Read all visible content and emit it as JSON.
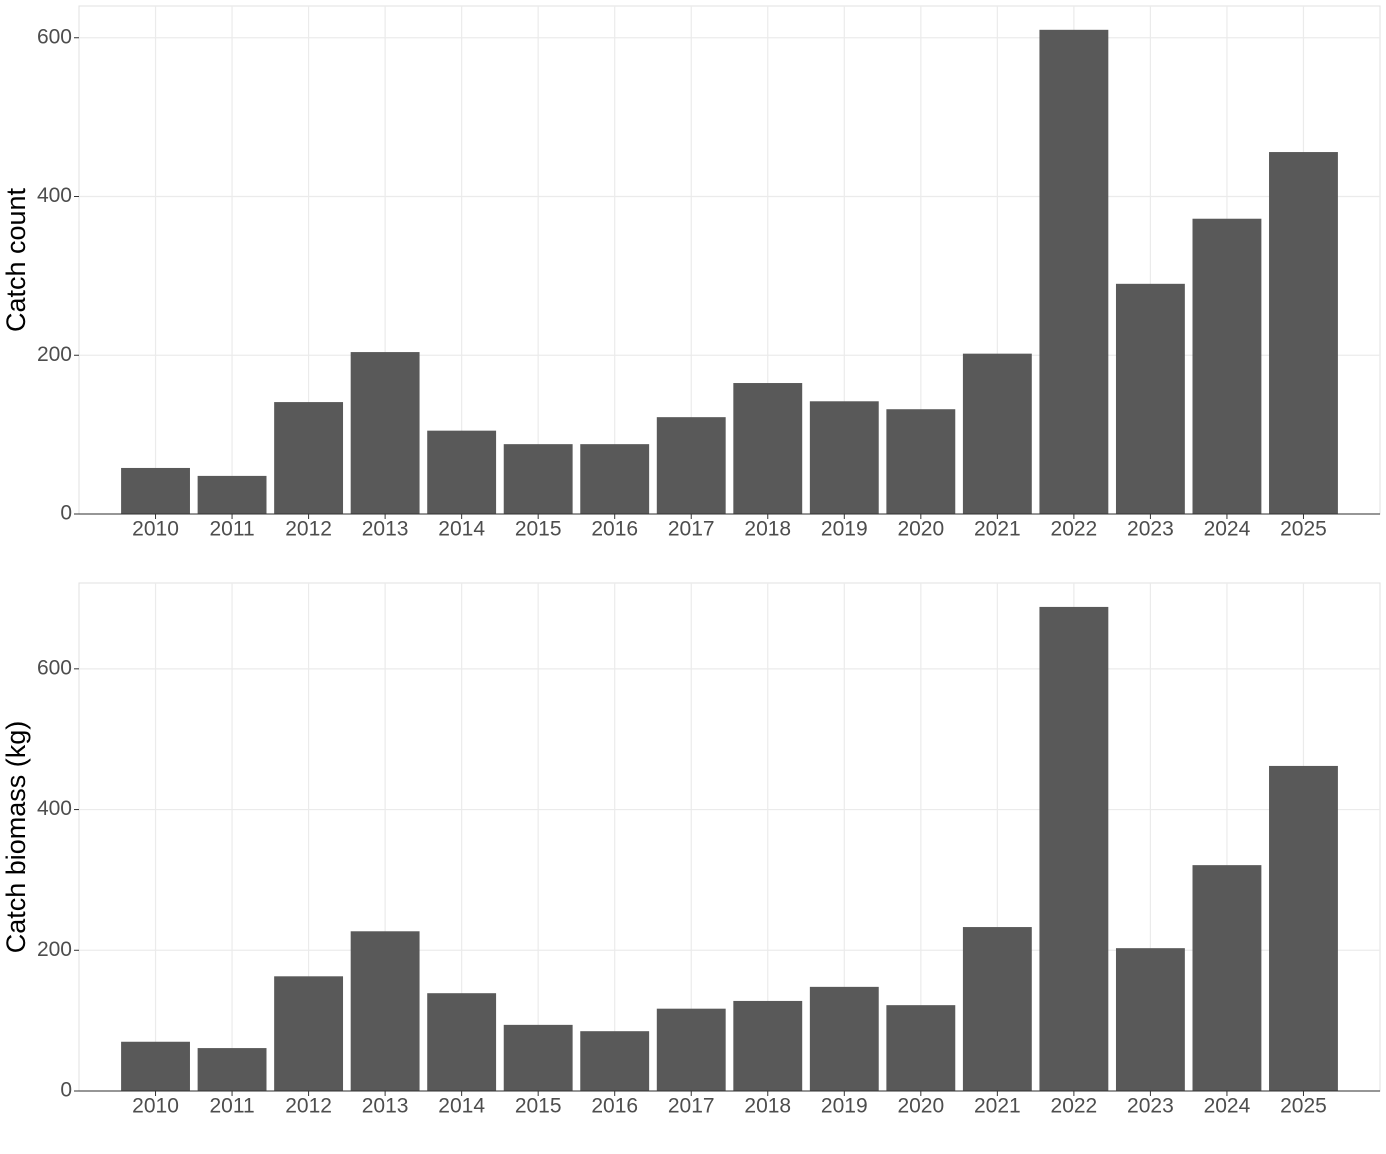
{
  "chart_data": [
    {
      "type": "bar",
      "y_label": "Catch count",
      "categories": [
        "2010",
        "2011",
        "2012",
        "2013",
        "2014",
        "2015",
        "2016",
        "2017",
        "2018",
        "2019",
        "2020",
        "2021",
        "2022",
        "2023",
        "2024",
        "2025"
      ],
      "values": [
        58,
        48,
        141,
        204,
        105,
        88,
        88,
        122,
        165,
        142,
        132,
        202,
        610,
        290,
        372,
        456
      ],
      "color": "#595959",
      "ylim": [
        0,
        640
      ],
      "yticks": [
        0,
        200,
        400,
        600
      ],
      "grid": true
    },
    {
      "type": "bar",
      "y_label": "Catch biomass (kg)",
      "categories": [
        "2010",
        "2011",
        "2012",
        "2013",
        "2014",
        "2015",
        "2016",
        "2017",
        "2018",
        "2019",
        "2020",
        "2021",
        "2022",
        "2023",
        "2024",
        "2025"
      ],
      "values": [
        70,
        61,
        163,
        227,
        139,
        94,
        85,
        117,
        128,
        148,
        122,
        233,
        688,
        203,
        321,
        462
      ],
      "color": "#595959",
      "ylim": [
        0,
        722
      ],
      "yticks": [
        0,
        200,
        400,
        600
      ],
      "grid": true
    }
  ]
}
